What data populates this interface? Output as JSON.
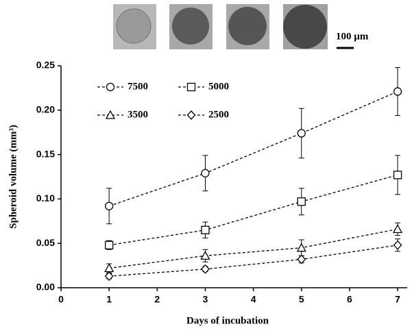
{
  "chart_data": {
    "type": "line",
    "annotation": "100 µm",
    "xlabel": "Days of incubation",
    "ylabel": "Spheroid volume (mm³)",
    "x": [
      1,
      3,
      5,
      7
    ],
    "xlim": [
      0,
      7.2
    ],
    "xticks": [
      0,
      1,
      2,
      3,
      4,
      5,
      6,
      7
    ],
    "ylim": [
      0,
      0.25
    ],
    "yticks": [
      {
        "value": 0,
        "label": "0.00"
      },
      {
        "value": 0.05,
        "label": "0.05"
      },
      {
        "value": 0.1,
        "label": "0.10"
      },
      {
        "value": 0.15,
        "label": "0.15"
      },
      {
        "value": 0.2,
        "label": "0.20"
      },
      {
        "value": 0.25,
        "label": "0.25"
      }
    ],
    "series": [
      {
        "name": "7500",
        "marker": "circle",
        "color": "#000000",
        "values": [
          0.092,
          0.129,
          0.174,
          0.221
        ],
        "errors": [
          0.02,
          0.02,
          0.028,
          0.027
        ]
      },
      {
        "name": "5000",
        "marker": "square",
        "color": "#000000",
        "values": [
          0.048,
          0.065,
          0.097,
          0.127
        ],
        "errors": [
          0.005,
          0.009,
          0.015,
          0.022
        ]
      },
      {
        "name": "3500",
        "marker": "triangle",
        "color": "#000000",
        "values": [
          0.022,
          0.036,
          0.045,
          0.066
        ],
        "errors": [
          0.005,
          0.007,
          0.009,
          0.007
        ]
      },
      {
        "name": "2500",
        "marker": "diamond",
        "color": "#000000",
        "values": [
          0.013,
          0.021,
          0.032,
          0.048
        ],
        "errors": [
          0.003,
          0.003,
          0.004,
          0.007
        ]
      }
    ]
  }
}
